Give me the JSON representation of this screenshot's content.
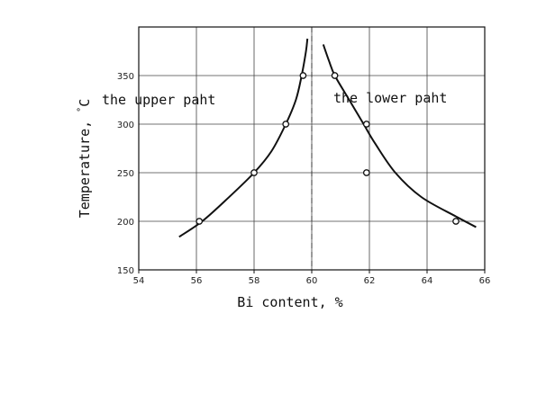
{
  "chart_data": {
    "type": "line",
    "title": "",
    "xlabel": "Bi content, %",
    "ylabel": "Temperature, ",
    "ylabel_unit": "°C",
    "xlim": [
      54,
      66
    ],
    "ylim": [
      150,
      400
    ],
    "x_ticks": [
      54,
      56,
      58,
      60,
      62,
      64,
      66
    ],
    "y_ticks": [
      150,
      200,
      250,
      300,
      350
    ],
    "grid": true,
    "reference_line_x": 60,
    "annotations": [
      "the upper paht",
      "the lower paht"
    ],
    "series": [
      {
        "curve": [
          [
            55.4,
            184
          ],
          [
            56.2,
            200
          ],
          [
            57.1,
            224
          ],
          [
            58.0,
            250
          ],
          [
            58.6,
            272
          ],
          [
            59.1,
            300
          ],
          [
            59.45,
            325
          ],
          [
            59.65,
            350
          ],
          [
            59.8,
            375
          ],
          [
            59.85,
            388
          ]
        ],
        "points": [
          [
            56.1,
            200
          ],
          [
            58.0,
            250
          ],
          [
            59.1,
            300
          ],
          [
            59.7,
            350
          ]
        ]
      },
      {
        "curve": [
          [
            60.4,
            382
          ],
          [
            60.6,
            365
          ],
          [
            60.8,
            350
          ],
          [
            61.3,
            325
          ],
          [
            61.8,
            300
          ],
          [
            62.2,
            280
          ],
          [
            62.9,
            250
          ],
          [
            63.8,
            225
          ],
          [
            65.0,
            205
          ],
          [
            65.7,
            194
          ]
        ],
        "points": [
          [
            60.8,
            350
          ],
          [
            61.9,
            300
          ],
          [
            61.9,
            250
          ],
          [
            65.0,
            200
          ]
        ]
      }
    ]
  }
}
